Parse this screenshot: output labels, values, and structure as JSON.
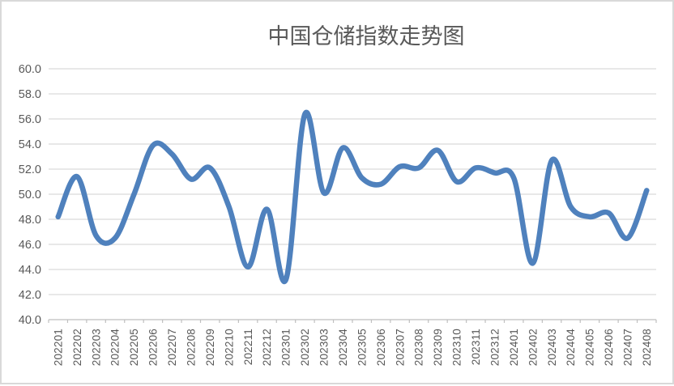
{
  "chart_data": {
    "type": "line",
    "title": "中国仓储指数走势图",
    "categories": [
      "202201",
      "202202",
      "202203",
      "202204",
      "202205",
      "202206",
      "202207",
      "202208",
      "202209",
      "202210",
      "202211",
      "202212",
      "202301",
      "202302",
      "202303",
      "202304",
      "202305",
      "202306",
      "202307",
      "202308",
      "202309",
      "202310",
      "202311",
      "202312",
      "202401",
      "202402",
      "202403",
      "202404",
      "202405",
      "202406",
      "202407",
      "202408"
    ],
    "values": [
      48.2,
      51.4,
      46.7,
      46.5,
      50.0,
      53.9,
      53.2,
      51.2,
      52.1,
      49.0,
      44.2,
      48.8,
      43.2,
      56.4,
      50.1,
      53.7,
      51.3,
      50.8,
      52.2,
      52.1,
      53.5,
      51.0,
      52.1,
      51.7,
      51.3,
      44.5,
      52.7,
      49.0,
      48.2,
      48.5,
      46.5,
      50.3
    ],
    "ylim": [
      40.0,
      60.0
    ],
    "yticks": [
      60.0,
      58.0,
      56.0,
      54.0,
      52.0,
      50.0,
      48.0,
      46.0,
      44.0,
      42.0,
      40.0
    ],
    "ytick_labels": [
      "60.0",
      "58.0",
      "56.0",
      "54.0",
      "52.0",
      "50.0",
      "48.0",
      "46.0",
      "44.0",
      "42.0",
      "40.0"
    ],
    "xlabel": "",
    "ylabel": "",
    "legend": "none",
    "grid": "horizontal",
    "smooth": true,
    "colors": {
      "line": "#4f81bd",
      "gridline": "#d9d9d9",
      "axis": "#bfbfbf",
      "tick_label": "#595959",
      "title": "#595959",
      "frame_border": "#d9d9d9",
      "background": "#ffffff"
    }
  }
}
